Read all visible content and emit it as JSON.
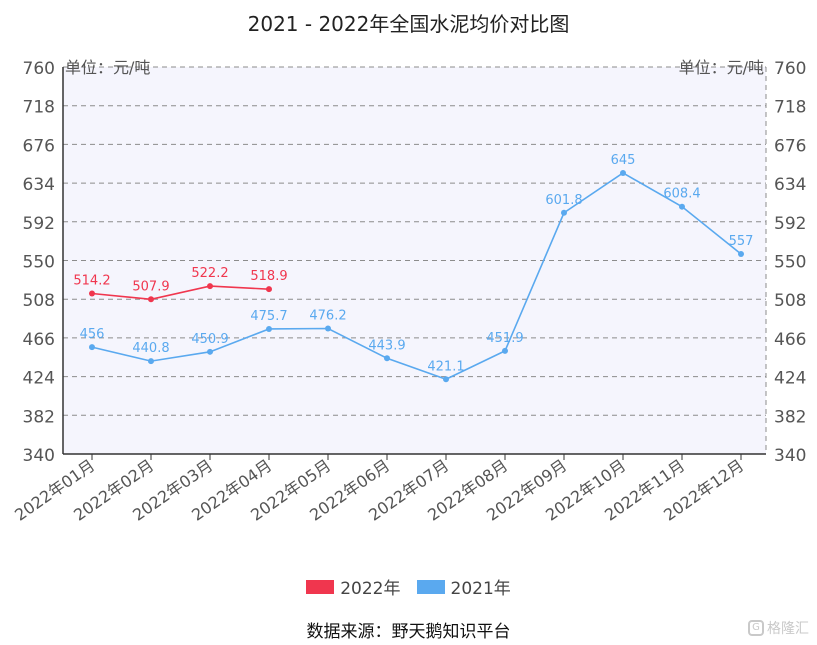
{
  "chart_data": {
    "type": "line",
    "title": "2021 - 2022年全国水泥均价对比图",
    "unit_label": "单位：元/吨",
    "categories": [
      "2022年01月",
      "2022年02月",
      "2022年03月",
      "2022年04月",
      "2022年05月",
      "2022年06月",
      "2022年07月",
      "2022年08月",
      "2022年09月",
      "2022年10月",
      "2022年11月",
      "2022年12月"
    ],
    "y_ticks": [
      340,
      382,
      424,
      466,
      508,
      550,
      592,
      634,
      676,
      718,
      760
    ],
    "ylim": [
      340,
      760
    ],
    "grid": true,
    "legend_position": "bottom",
    "series": [
      {
        "name": "2022年",
        "color": "#f0364e",
        "values": [
          514.2,
          507.9,
          522.2,
          518.9,
          null,
          null,
          null,
          null,
          null,
          null,
          null,
          null
        ],
        "labels": [
          "514.2",
          "507.9",
          "522.2",
          "518.9"
        ]
      },
      {
        "name": "2021年",
        "color": "#5aa9ef",
        "values": [
          456,
          440.8,
          450.9,
          475.7,
          476.2,
          443.9,
          421.1,
          451.9,
          601.8,
          645,
          608.4,
          557
        ],
        "labels": [
          "456",
          "440.8",
          "450.9",
          "475.7",
          "476.2",
          "443.9",
          "421.1",
          "451.9",
          "601.8",
          "645",
          "608.4",
          "557"
        ]
      }
    ]
  },
  "source": "数据来源：野天鹅知识平台",
  "watermark": "格隆汇"
}
